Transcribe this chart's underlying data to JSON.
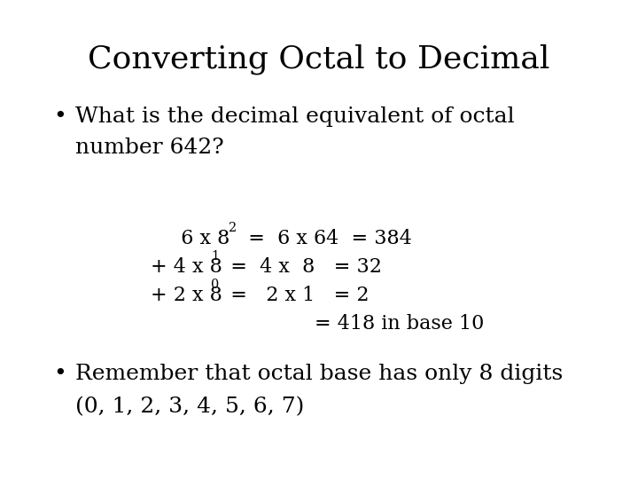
{
  "title": "Converting Octal to Decimal",
  "title_fontsize": 26,
  "background_color": "#ffffff",
  "text_color": "#000000",
  "bullet1_line1": "What is the decimal equivalent of octal",
  "bullet1_line2": "number 642?",
  "bullet2_line1": "Remember that octal base has only 8 digits",
  "bullet2_line2": "(0, 1, 2, 3, 4, 5, 6, 7)",
  "bullet_fontsize": 18,
  "calc_fontsize": 16,
  "figwidth": 7.2,
  "figheight": 5.4,
  "dpi": 100
}
